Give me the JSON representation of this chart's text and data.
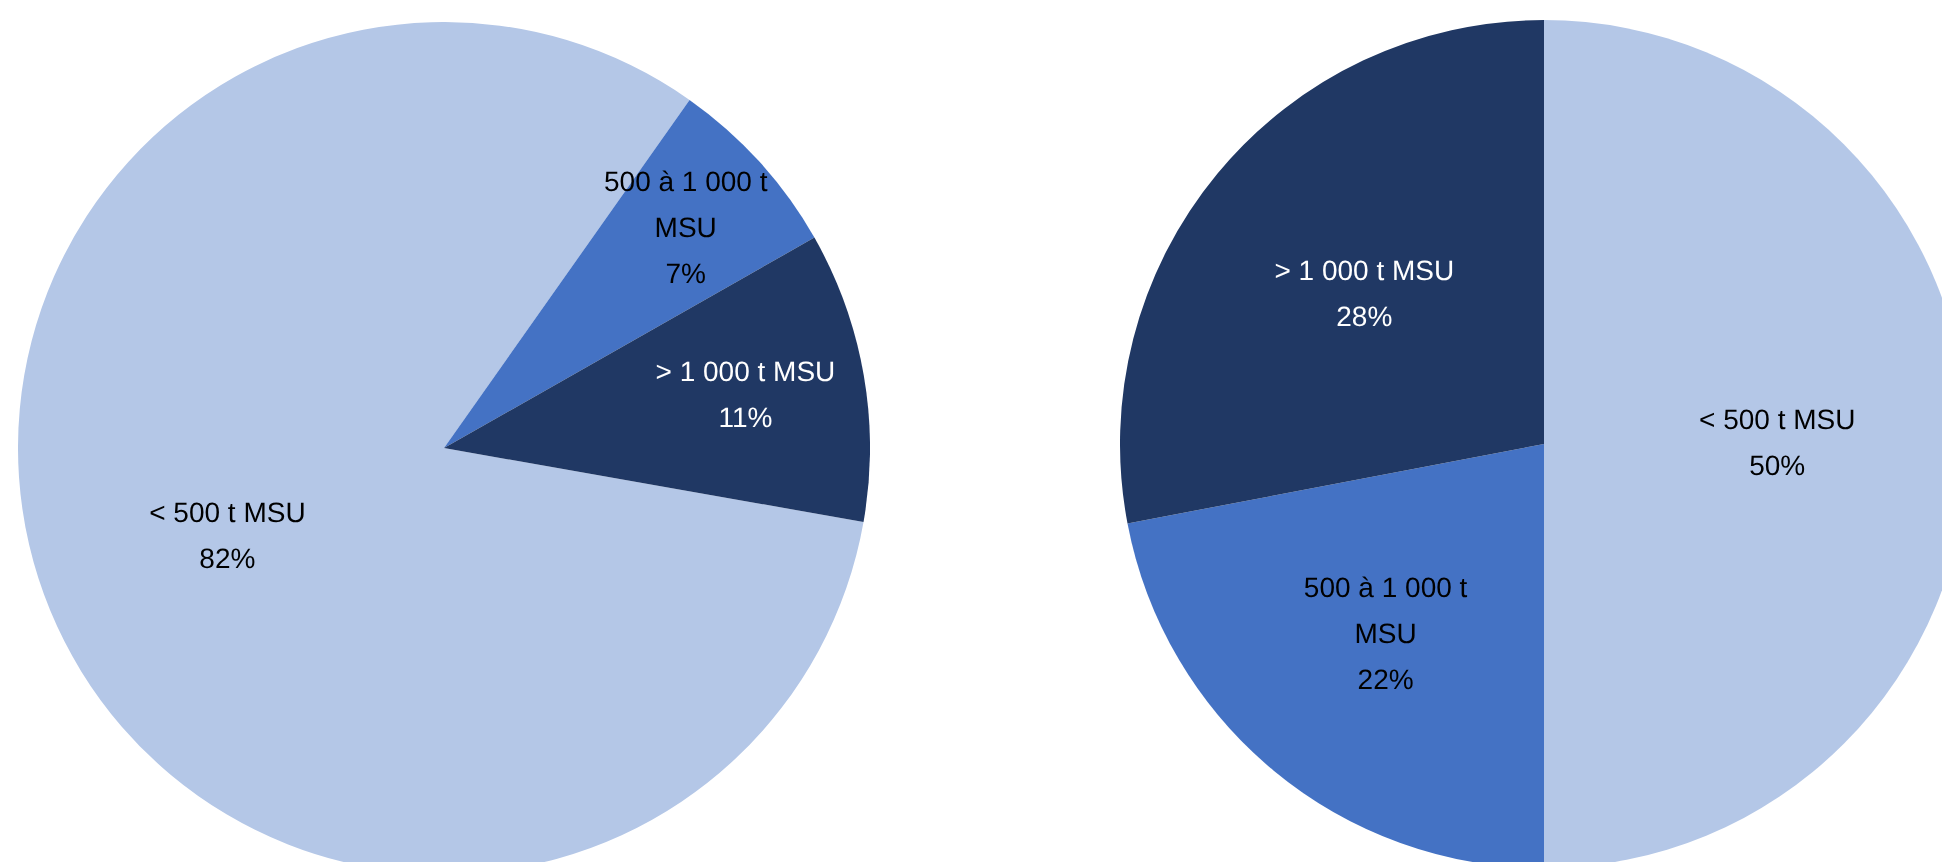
{
  "chart_data": [
    {
      "type": "pie",
      "categories": [
        "< 500 t MSU",
        "500 à 1 000 t MSU",
        "> 1 000 t MSU"
      ],
      "values": [
        82,
        7,
        11
      ],
      "value_labels": [
        "82%",
        "7%",
        "11%"
      ],
      "colors": [
        "#b4c7e7",
        "#4472c4",
        "#203864"
      ]
    },
    {
      "type": "pie",
      "categories": [
        "< 500 t MSU",
        "500 à 1 000 t MSU",
        "> 1 000 t MSU"
      ],
      "values": [
        50,
        22,
        28
      ],
      "value_labels": [
        "50%",
        "22%",
        "28%"
      ],
      "colors": [
        "#b4c7e7",
        "#4472c4",
        "#203864"
      ]
    }
  ]
}
